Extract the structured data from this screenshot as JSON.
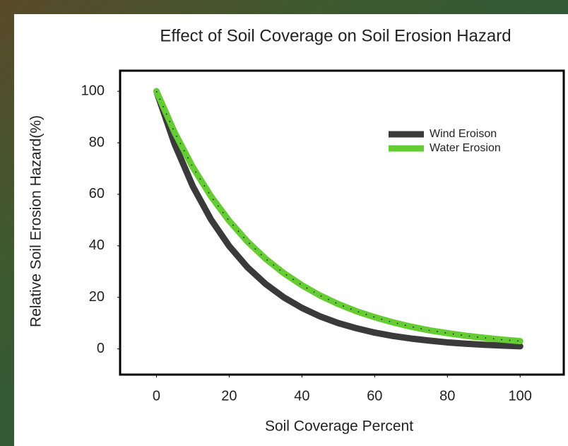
{
  "chart_data": {
    "type": "line",
    "title": "Effect of Soil Coverage on Soil Erosion Hazard",
    "x_label": "Soil Coverage Percent",
    "y_label": "Relative Soil Erosion Hazard(%)",
    "x": [
      0,
      5,
      10,
      15,
      20,
      25,
      30,
      35,
      40,
      45,
      50,
      55,
      60,
      65,
      70,
      75,
      80,
      85,
      90,
      95,
      100
    ],
    "series": [
      {
        "name": "Wind Eroison",
        "color": "#3a3a3a",
        "values": [
          100,
          79.5,
          63.1,
          50.2,
          39.9,
          31.7,
          25.2,
          20.0,
          15.9,
          12.6,
          10.0,
          8.0,
          6.3,
          5.0,
          4.0,
          3.2,
          2.5,
          2.0,
          1.6,
          1.3,
          1.0
        ]
      },
      {
        "name": "Water Erosion",
        "color": "#66cc33",
        "values": [
          100,
          84.0,
          70.5,
          59.2,
          49.7,
          41.7,
          35.0,
          29.4,
          24.7,
          20.7,
          17.4,
          14.6,
          12.3,
          10.3,
          8.6,
          7.2,
          6.1,
          5.1,
          4.3,
          3.6,
          3.0
        ]
      }
    ],
    "xlim": [
      -10,
      112
    ],
    "ylim": [
      -10,
      108
    ],
    "xticks": [
      0,
      20,
      40,
      60,
      80,
      100
    ],
    "yticks": [
      0,
      20,
      40,
      60,
      80,
      100
    ],
    "grid": false,
    "legend": "upper right"
  }
}
